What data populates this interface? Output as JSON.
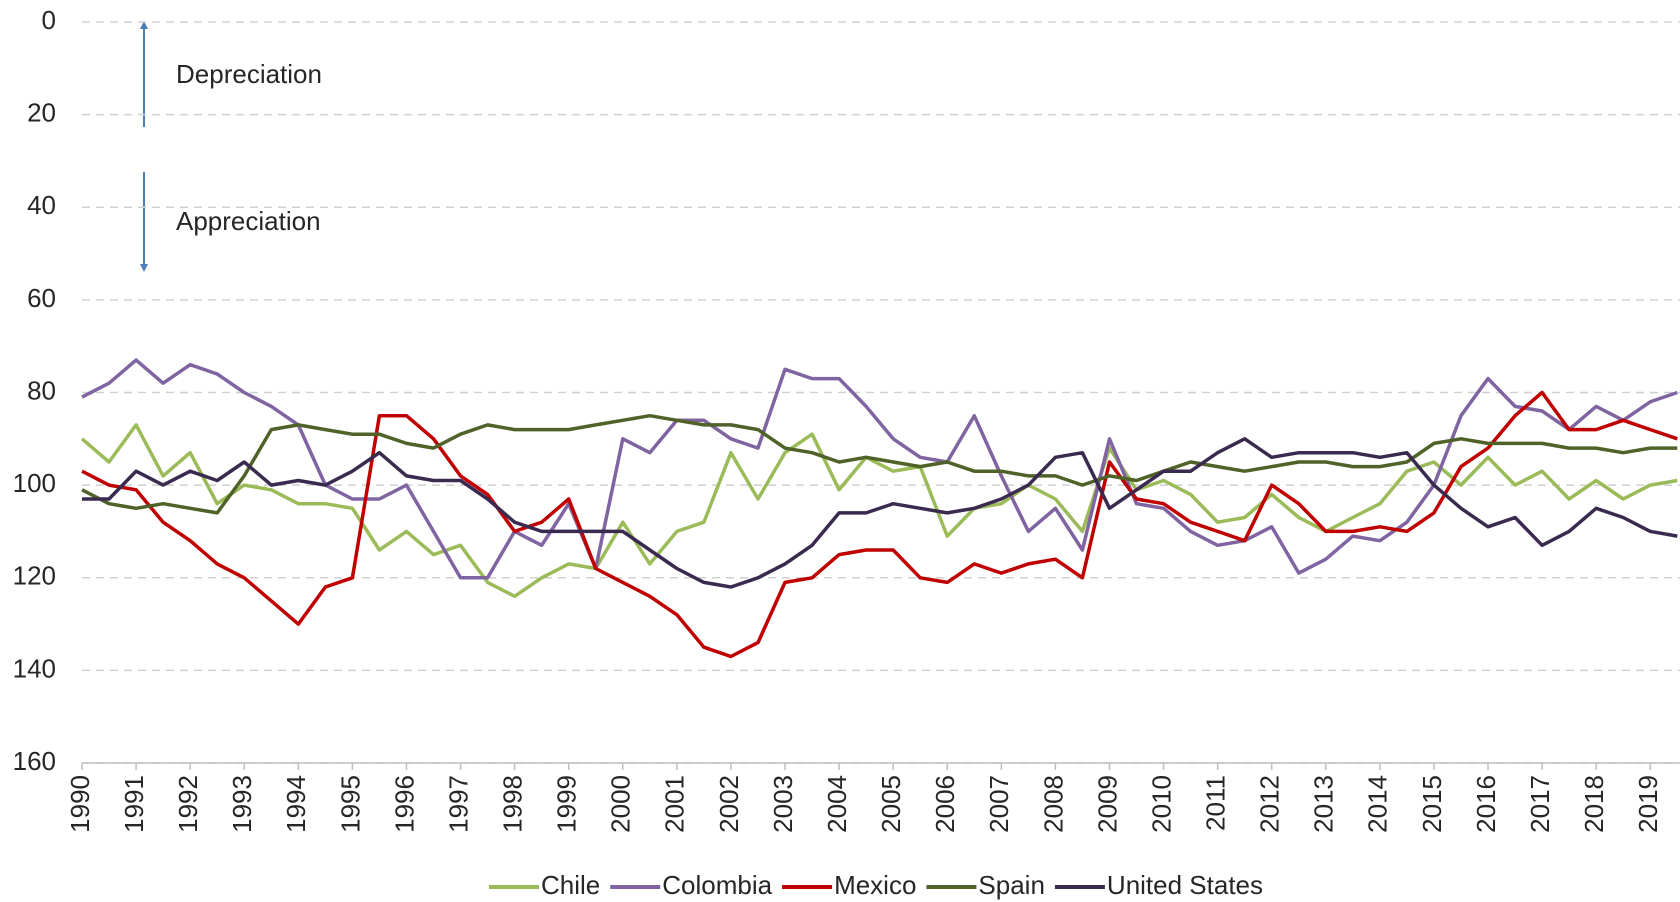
{
  "chart_data": {
    "type": "line",
    "annotations": [
      "Depreciation",
      "Appreciation"
    ],
    "x": [
      1990,
      1990.5,
      1991,
      1991.5,
      1992,
      1992.5,
      1993,
      1993.5,
      1994,
      1994.5,
      1995,
      1995.5,
      1996,
      1996.5,
      1997,
      1997.5,
      1998,
      1998.5,
      1999,
      1999.5,
      2000,
      2000.5,
      2001,
      2001.5,
      2002,
      2002.5,
      2003,
      2003.5,
      2004,
      2004.5,
      2005,
      2005.5,
      2006,
      2006.5,
      2007,
      2007.5,
      2008,
      2008.5,
      2009,
      2009.5,
      2010,
      2010.5,
      2011,
      2011.5,
      2012,
      2012.5,
      2013,
      2013.5,
      2014,
      2014.5,
      2015,
      2015.5,
      2016,
      2016.5,
      2017,
      2017.5,
      2018,
      2018.5,
      2019,
      2019.5
    ],
    "series": [
      {
        "name": "Chile",
        "color": "#9bbb59",
        "values": [
          90,
          95,
          87,
          98,
          93,
          104,
          100,
          101,
          104,
          104,
          105,
          114,
          110,
          115,
          113,
          121,
          124,
          120,
          117,
          118,
          108,
          117,
          110,
          108,
          93,
          103,
          93,
          89,
          101,
          94,
          97,
          96,
          111,
          105,
          104,
          100,
          103,
          110,
          92,
          101,
          99,
          102,
          108,
          107,
          102,
          107,
          110,
          107,
          104,
          97,
          95,
          100,
          94,
          100,
          97,
          103,
          99,
          103,
          100,
          99
        ]
      },
      {
        "name": "Colombia",
        "color": "#8064a2",
        "values": [
          81,
          78,
          73,
          78,
          74,
          76,
          80,
          83,
          87,
          100,
          103,
          103,
          100,
          110,
          120,
          120,
          110,
          113,
          104,
          118,
          90,
          93,
          86,
          86,
          90,
          92,
          75,
          77,
          77,
          83,
          90,
          94,
          95,
          85,
          98,
          110,
          105,
          114,
          90,
          104,
          105,
          110,
          113,
          112,
          109,
          119,
          116,
          111,
          112,
          108,
          100,
          85,
          77,
          83,
          84,
          88,
          83,
          86,
          82,
          80
        ]
      },
      {
        "name": "Mexico",
        "color": "#c00000",
        "values": [
          97,
          100,
          101,
          108,
          112,
          117,
          120,
          125,
          130,
          122,
          120,
          85,
          85,
          90,
          98,
          102,
          110,
          108,
          103,
          118,
          121,
          124,
          128,
          135,
          137,
          134,
          121,
          120,
          115,
          114,
          114,
          120,
          121,
          117,
          119,
          117,
          116,
          120,
          95,
          103,
          104,
          108,
          110,
          112,
          100,
          104,
          110,
          110,
          109,
          110,
          106,
          96,
          92,
          85,
          80,
          88,
          88,
          86,
          88,
          90
        ]
      },
      {
        "name": "Spain",
        "color": "#4f6228",
        "values": [
          101,
          104,
          105,
          104,
          105,
          106,
          98,
          88,
          87,
          88,
          89,
          89,
          91,
          92,
          89,
          87,
          88,
          88,
          88,
          87,
          86,
          85,
          86,
          87,
          87,
          88,
          92,
          93,
          95,
          94,
          95,
          96,
          95,
          97,
          97,
          98,
          98,
          100,
          98,
          99,
          97,
          95,
          96,
          97,
          96,
          95,
          95,
          96,
          96,
          95,
          91,
          90,
          91,
          91,
          91,
          92,
          92,
          93,
          92,
          92
        ]
      },
      {
        "name": "United States",
        "color": "#3b2a4f",
        "values": [
          103,
          103,
          97,
          100,
          97,
          99,
          95,
          100,
          99,
          100,
          97,
          93,
          98,
          99,
          99,
          103,
          108,
          110,
          110,
          110,
          110,
          114,
          118,
          121,
          122,
          120,
          117,
          113,
          106,
          106,
          104,
          105,
          106,
          105,
          103,
          100,
          94,
          93,
          105,
          101,
          97,
          97,
          93,
          90,
          94,
          93,
          93,
          93,
          94,
          93,
          100,
          105,
          109,
          107,
          113,
          110,
          105,
          107,
          110,
          111
        ]
      }
    ],
    "xlim": [
      1990,
      2019.55
    ],
    "xticks": [
      1990,
      1991,
      1992,
      1993,
      1994,
      1995,
      1996,
      1997,
      1998,
      1999,
      2000,
      2001,
      2002,
      2003,
      2004,
      2005,
      2006,
      2007,
      2008,
      2009,
      2010,
      2011,
      2012,
      2013,
      2014,
      2015,
      2016,
      2017,
      2018,
      2019
    ],
    "ylim": [
      0,
      160
    ],
    "y_reversed": true,
    "yticks": [
      0,
      20,
      40,
      60,
      80,
      100,
      120,
      140,
      160
    ],
    "grid": true,
    "legend": "bottom"
  }
}
